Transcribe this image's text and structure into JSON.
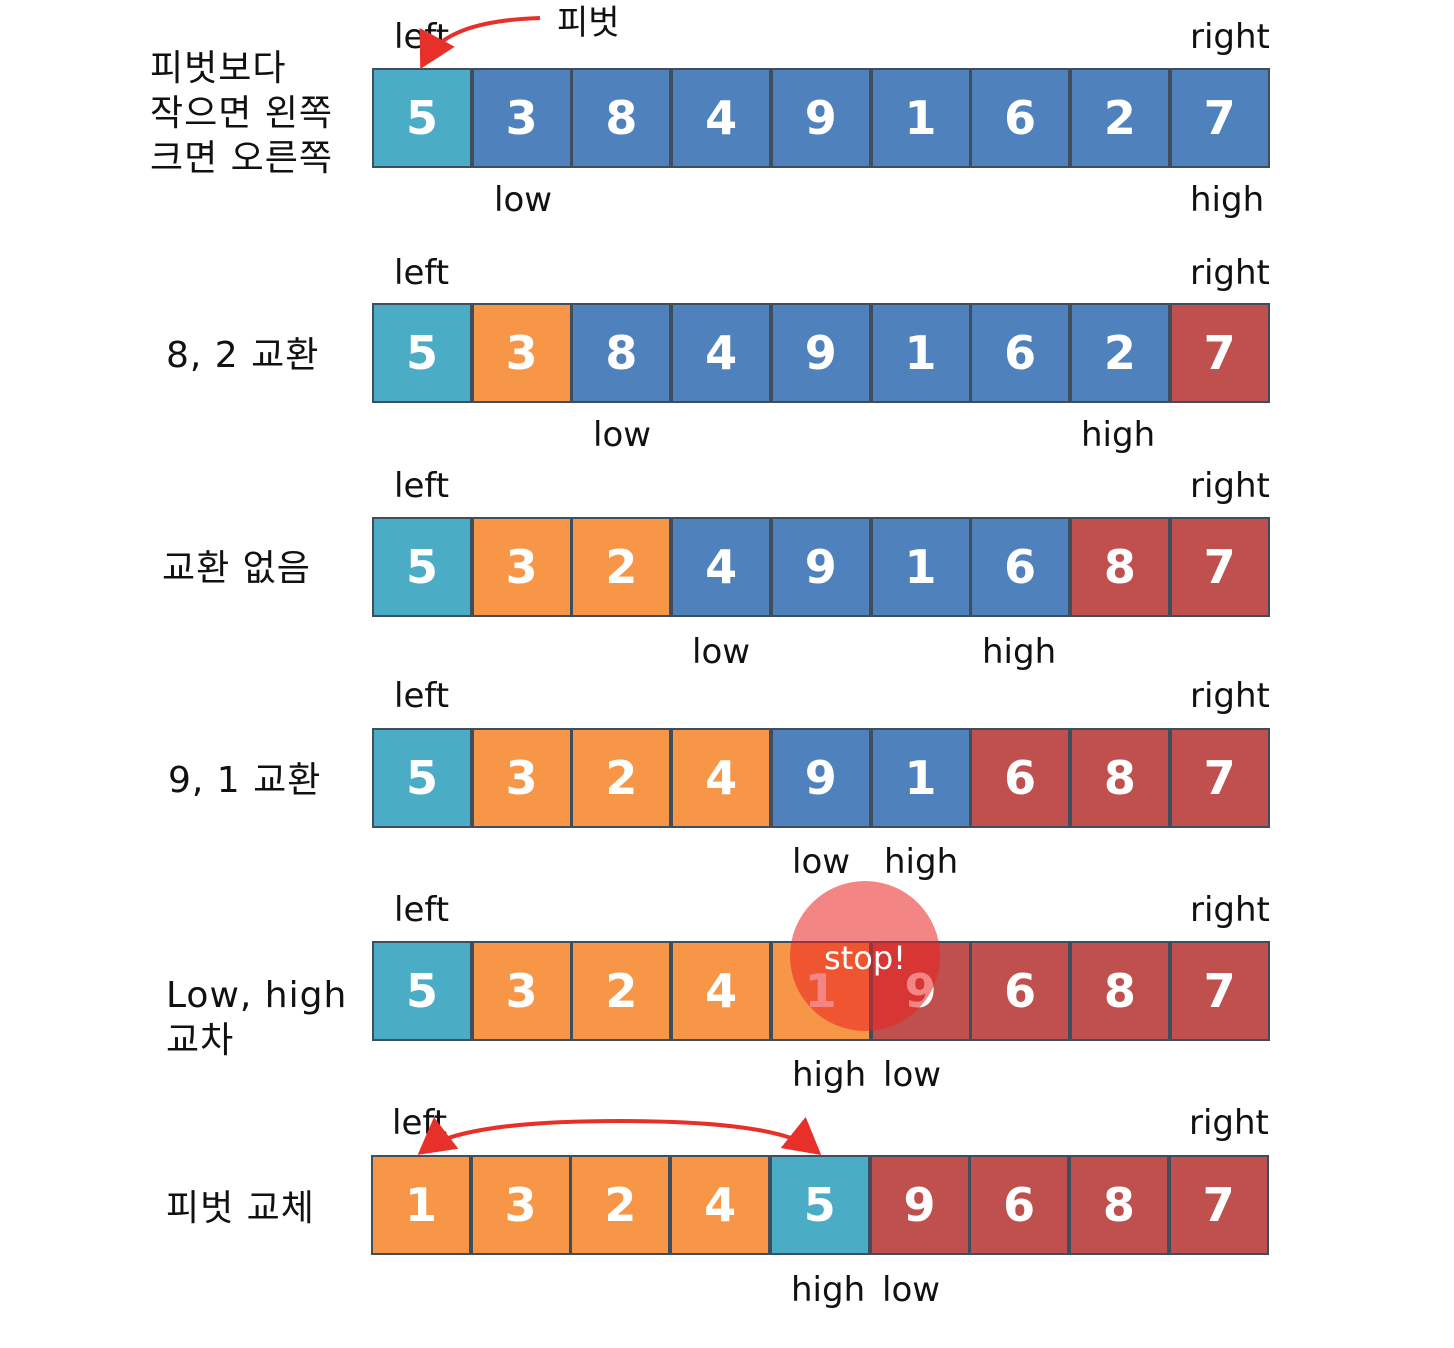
{
  "colors": {
    "pivot": "#4bacc6",
    "unsorted": "#4f81bd",
    "left_part": "#f79646",
    "right_part": "#c0504d",
    "arrow": "#e8302a"
  },
  "pivot_callout": "피벗",
  "steps": [
    {
      "label": "피벗보다\n작으면 왼쪽\n크면 오른쪽",
      "left": "left",
      "right": "right",
      "low": "low",
      "high": "high",
      "cells": [
        {
          "v": "5",
          "c": "pivot"
        },
        {
          "v": "3",
          "c": "unsorted"
        },
        {
          "v": "8",
          "c": "unsorted"
        },
        {
          "v": "4",
          "c": "unsorted"
        },
        {
          "v": "9",
          "c": "unsorted"
        },
        {
          "v": "1",
          "c": "unsorted"
        },
        {
          "v": "6",
          "c": "unsorted"
        },
        {
          "v": "2",
          "c": "unsorted"
        },
        {
          "v": "7",
          "c": "unsorted"
        }
      ]
    },
    {
      "label": "8, 2 교환",
      "left": "left",
      "right": "right",
      "low": "low",
      "high": "high",
      "cells": [
        {
          "v": "5",
          "c": "pivot"
        },
        {
          "v": "3",
          "c": "left_part"
        },
        {
          "v": "8",
          "c": "unsorted"
        },
        {
          "v": "4",
          "c": "unsorted"
        },
        {
          "v": "9",
          "c": "unsorted"
        },
        {
          "v": "1",
          "c": "unsorted"
        },
        {
          "v": "6",
          "c": "unsorted"
        },
        {
          "v": "2",
          "c": "unsorted"
        },
        {
          "v": "7",
          "c": "right_part"
        }
      ]
    },
    {
      "label": "교환 없음",
      "left": "left",
      "right": "right",
      "low": "low",
      "high": "high",
      "cells": [
        {
          "v": "5",
          "c": "pivot"
        },
        {
          "v": "3",
          "c": "left_part"
        },
        {
          "v": "2",
          "c": "left_part"
        },
        {
          "v": "4",
          "c": "unsorted"
        },
        {
          "v": "9",
          "c": "unsorted"
        },
        {
          "v": "1",
          "c": "unsorted"
        },
        {
          "v": "6",
          "c": "unsorted"
        },
        {
          "v": "8",
          "c": "right_part"
        },
        {
          "v": "7",
          "c": "right_part"
        }
      ]
    },
    {
      "label": "9, 1 교환",
      "left": "left",
      "right": "right",
      "low": "low",
      "high": "high",
      "cells": [
        {
          "v": "5",
          "c": "pivot"
        },
        {
          "v": "3",
          "c": "left_part"
        },
        {
          "v": "2",
          "c": "left_part"
        },
        {
          "v": "4",
          "c": "left_part"
        },
        {
          "v": "9",
          "c": "unsorted"
        },
        {
          "v": "1",
          "c": "unsorted"
        },
        {
          "v": "6",
          "c": "right_part"
        },
        {
          "v": "8",
          "c": "right_part"
        },
        {
          "v": "7",
          "c": "right_part"
        }
      ]
    },
    {
      "label": "Low, high\n교차",
      "left": "left",
      "right": "right",
      "low": "low",
      "high": "high",
      "stop": "stop!",
      "cells": [
        {
          "v": "5",
          "c": "pivot"
        },
        {
          "v": "3",
          "c": "left_part"
        },
        {
          "v": "2",
          "c": "left_part"
        },
        {
          "v": "4",
          "c": "left_part"
        },
        {
          "v": "1",
          "c": "left_part"
        },
        {
          "v": "9",
          "c": "right_part"
        },
        {
          "v": "6",
          "c": "right_part"
        },
        {
          "v": "8",
          "c": "right_part"
        },
        {
          "v": "7",
          "c": "right_part"
        }
      ]
    },
    {
      "label": "피벗 교체",
      "left": "left",
      "right": "right",
      "low": "low",
      "high": "high",
      "cells": [
        {
          "v": "1",
          "c": "left_part"
        },
        {
          "v": "3",
          "c": "left_part"
        },
        {
          "v": "2",
          "c": "left_part"
        },
        {
          "v": "4",
          "c": "left_part"
        },
        {
          "v": "5",
          "c": "pivot"
        },
        {
          "v": "9",
          "c": "right_part"
        },
        {
          "v": "6",
          "c": "right_part"
        },
        {
          "v": "8",
          "c": "right_part"
        },
        {
          "v": "7",
          "c": "right_part"
        }
      ]
    }
  ]
}
